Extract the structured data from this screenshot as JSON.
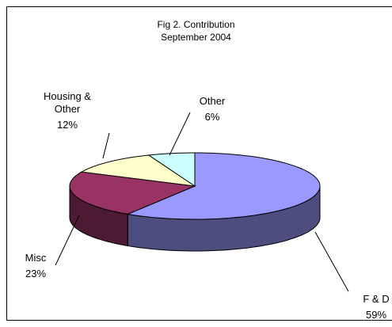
{
  "chart_data": {
    "type": "pie",
    "title": "Fig 2. Contribution",
    "subtitle": "September 2004",
    "categories": [
      "F & D",
      "Misc",
      "Housing & Other",
      "Other"
    ],
    "values": [
      59,
      23,
      12,
      6
    ],
    "value_labels": [
      "59%",
      "23%",
      "12%",
      "6%"
    ],
    "colors": [
      "#9999ff",
      "#993366",
      "#ffffcc",
      "#ccffff"
    ]
  }
}
